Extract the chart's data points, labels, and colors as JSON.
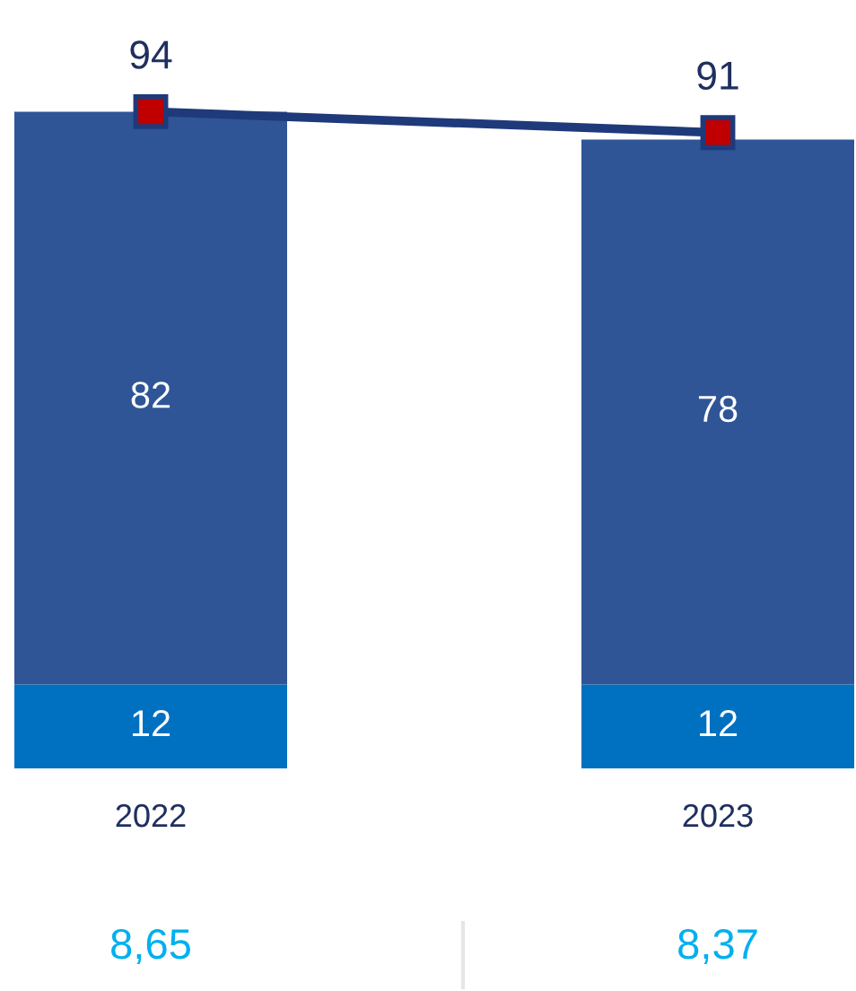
{
  "chart_data": {
    "type": "bar",
    "stacked": true,
    "data_labels": true,
    "marker": "square",
    "categories": [
      "2022",
      "2023"
    ],
    "series": [
      {
        "color": "#0070c0",
        "values": [
          12,
          12
        ]
      },
      {
        "color": "#2f5597",
        "values": [
          82,
          78
        ]
      },
      {
        "type": "line",
        "color": "#1f3a7a",
        "values": [
          94,
          91
        ]
      }
    ],
    "annotations": [
      "8,65",
      "8,37"
    ]
  }
}
